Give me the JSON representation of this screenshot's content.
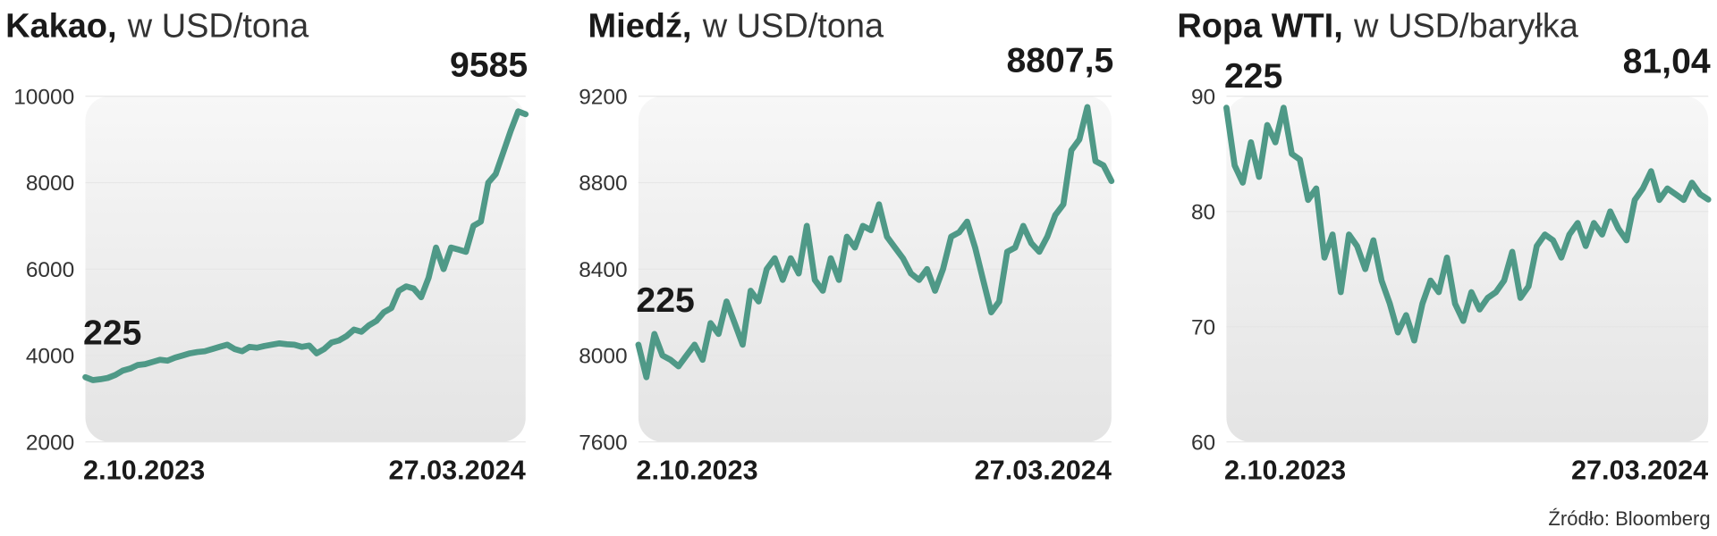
{
  "chart_data": [
    {
      "type": "line",
      "title": "Kakao,",
      "subtitle": "w USD/tona",
      "categories": [
        "2.10.2023",
        null,
        null,
        null,
        null,
        null,
        null,
        null,
        null,
        null,
        null,
        null,
        null,
        null,
        null,
        null,
        null,
        null,
        null,
        null,
        null,
        null,
        null,
        null,
        null,
        null,
        null,
        null,
        null,
        null,
        null,
        null,
        null,
        null,
        null,
        null,
        null,
        null,
        null,
        null,
        null,
        null,
        null,
        null,
        null,
        null,
        null,
        null,
        null,
        null,
        null,
        null,
        null,
        null,
        null,
        null,
        null,
        null,
        null,
        "27.03.2024"
      ],
      "values": [
        3500,
        3430,
        3450,
        3480,
        3550,
        3650,
        3700,
        3780,
        3800,
        3850,
        3900,
        3880,
        3950,
        4000,
        4050,
        4080,
        4100,
        4150,
        4200,
        4250,
        4150,
        4100,
        4200,
        4180,
        4220,
        4250,
        4280,
        4260,
        4250,
        4200,
        4230,
        4050,
        4150,
        4300,
        4350,
        4450,
        4600,
        4550,
        4700,
        4800,
        5000,
        5100,
        5500,
        5600,
        5550,
        5350,
        5800,
        6500,
        6000,
        6500,
        6450,
        6400,
        7000,
        7100,
        8000,
        8200,
        8700,
        9200,
        9650,
        9585
      ],
      "color": "#4f9987",
      "ylim": [
        2000,
        10000
      ],
      "yticks": [
        2000,
        4000,
        6000,
        8000,
        10000
      ],
      "grid": true,
      "annotations": [
        "225",
        "9585"
      ]
    },
    {
      "type": "line",
      "title": "Miedź,",
      "subtitle": "w USD/tona",
      "categories": [
        "2.10.2023",
        null,
        null,
        null,
        null,
        null,
        null,
        null,
        null,
        null,
        null,
        null,
        null,
        null,
        null,
        null,
        null,
        null,
        null,
        null,
        null,
        null,
        null,
        null,
        null,
        null,
        null,
        null,
        null,
        null,
        null,
        null,
        null,
        null,
        null,
        null,
        null,
        null,
        null,
        null,
        null,
        null,
        null,
        null,
        null,
        null,
        null,
        null,
        null,
        null,
        null,
        null,
        null,
        null,
        null,
        null,
        null,
        null,
        null,
        "27.03.2024"
      ],
      "values": [
        8050,
        7900,
        8100,
        8000,
        7980,
        7950,
        8000,
        8050,
        7980,
        8150,
        8100,
        8250,
        8150,
        8050,
        8300,
        8250,
        8400,
        8450,
        8350,
        8450,
        8380,
        8600,
        8350,
        8300,
        8450,
        8350,
        8550,
        8500,
        8600,
        8580,
        8700,
        8550,
        8500,
        8450,
        8380,
        8350,
        8400,
        8300,
        8400,
        8550,
        8570,
        8620,
        8500,
        8350,
        8200,
        8250,
        8480,
        8500,
        8600,
        8520,
        8480,
        8550,
        8650,
        8700,
        8950,
        9000,
        9150,
        8900,
        8880,
        8807.5
      ],
      "color": "#4f9987",
      "ylim": [
        7600,
        9200
      ],
      "yticks": [
        7600,
        8000,
        8400,
        8800,
        9200
      ],
      "grid": true,
      "annotations": [
        "225",
        "8807,5"
      ]
    },
    {
      "type": "line",
      "title": "Ropa WTI,",
      "subtitle": "w USD/baryłka",
      "categories": [
        "2.10.2023",
        null,
        null,
        null,
        null,
        null,
        null,
        null,
        null,
        null,
        null,
        null,
        null,
        null,
        null,
        null,
        null,
        null,
        null,
        null,
        null,
        null,
        null,
        null,
        null,
        null,
        null,
        null,
        null,
        null,
        null,
        null,
        null,
        null,
        null,
        null,
        null,
        null,
        null,
        null,
        null,
        null,
        null,
        null,
        null,
        null,
        null,
        null,
        null,
        null,
        null,
        null,
        null,
        null,
        null,
        null,
        null,
        null,
        null,
        "27.03.2024"
      ],
      "values": [
        89,
        84,
        82.5,
        86,
        83,
        87.5,
        86,
        89,
        85,
        84.5,
        81,
        82,
        76,
        78,
        73,
        78,
        77,
        75,
        77.5,
        74,
        72,
        69.5,
        71,
        68.8,
        72,
        74,
        73,
        76,
        72,
        70.5,
        73,
        71.5,
        72.5,
        73,
        74,
        76.5,
        72.5,
        73.5,
        77,
        78,
        77.5,
        76,
        78,
        79,
        77,
        79,
        78,
        80,
        78.5,
        77.5,
        81,
        82,
        83.5,
        81,
        82,
        81.5,
        81,
        82.5,
        81.5,
        81.04
      ],
      "color": "#4f9987",
      "ylim": [
        60,
        90
      ],
      "yticks": [
        60,
        70,
        80,
        90
      ],
      "grid": true,
      "annotations": [
        "225",
        "81,04"
      ]
    }
  ],
  "source": "Źródło: Bloomberg"
}
